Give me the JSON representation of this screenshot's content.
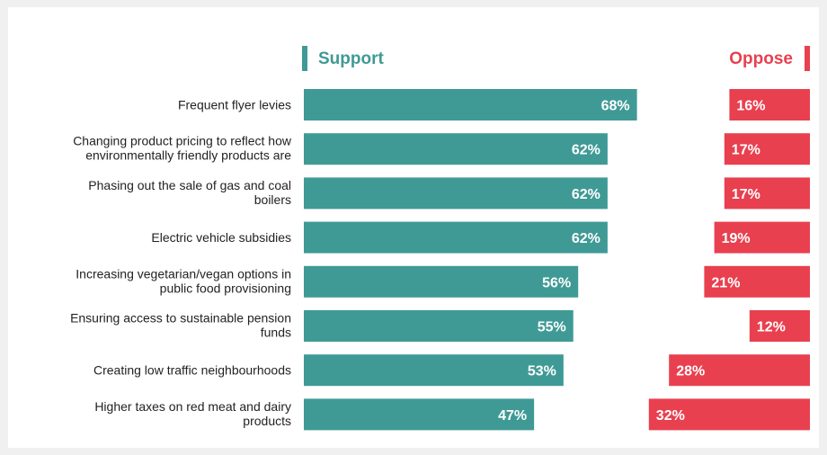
{
  "chart_data": {
    "type": "bar",
    "orientation": "horizontal",
    "categories": [
      [
        "Frequent flyer levies"
      ],
      [
        "Changing product pricing to reflect how",
        "environmentally friendly products are"
      ],
      [
        "Phasing out the sale of gas and coal",
        "boilers"
      ],
      [
        "Electric vehicle subsidies"
      ],
      [
        "Increasing vegetarian/vegan options in",
        "public food provisioning"
      ],
      [
        "Ensuring access to sustainable pension",
        "funds"
      ],
      [
        "Creating low traffic neighbourhoods"
      ],
      [
        "Higher taxes on red meat and dairy",
        "products"
      ]
    ],
    "series": [
      {
        "name": "Support",
        "color": "#3f9a96",
        "values": [
          68,
          62,
          62,
          62,
          56,
          55,
          53,
          47
        ],
        "labels": [
          "68%",
          "62%",
          "62%",
          "62%",
          "56%",
          "55%",
          "53%",
          "47%"
        ]
      },
      {
        "name": "Oppose",
        "color": "#e8404f",
        "values": [
          16,
          17,
          17,
          19,
          21,
          12,
          28,
          32
        ],
        "labels": [
          "16%",
          "17%",
          "17%",
          "19%",
          "21%",
          "12%",
          "28%",
          "32%"
        ]
      }
    ],
    "value_unit": "%",
    "legend": "top",
    "grid": false,
    "xlim": [
      0,
      100
    ]
  }
}
